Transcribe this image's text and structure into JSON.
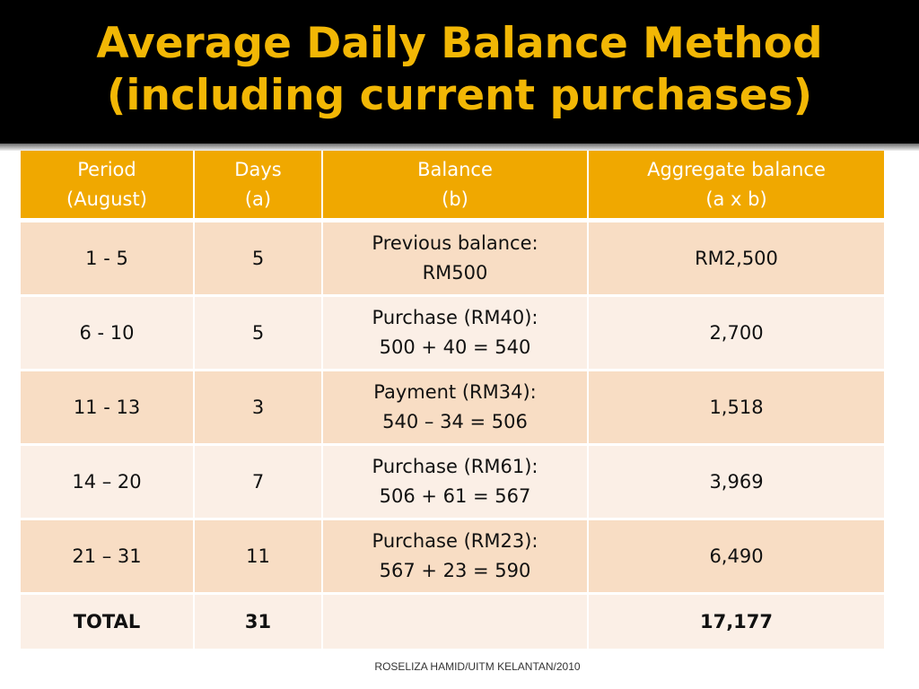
{
  "slide": {
    "title_line1": "Average Daily Balance Method",
    "title_line2": "(including current purchases)",
    "footer": "ROSELIZA HAMID/UITM KELANTAN/2010"
  },
  "table": {
    "headers": [
      {
        "line1": "Period",
        "line2": "(August)"
      },
      {
        "line1": "Days",
        "line2": "(a)"
      },
      {
        "line1": "Balance",
        "line2": "(b)"
      },
      {
        "line1": "Aggregate balance",
        "line2": "(a x b)"
      }
    ],
    "rows": [
      {
        "period": "1 - 5",
        "days": "5",
        "balance_line1": "Previous balance:",
        "balance_line2": "RM500",
        "aggregate": "RM2,500"
      },
      {
        "period": "6 - 10",
        "days": "5",
        "balance_line1": "Purchase  (RM40):",
        "balance_line2": "500 + 40 = 540",
        "aggregate": "2,700"
      },
      {
        "period": "11 - 13",
        "days": "3",
        "balance_line1": "Payment (RM34):",
        "balance_line2": "540 – 34 = 506",
        "aggregate": "1,518"
      },
      {
        "period": "14 – 20",
        "days": "7",
        "balance_line1": "Purchase (RM61):",
        "balance_line2": "506 + 61 = 567",
        "aggregate": "3,969"
      },
      {
        "period": "21 – 31",
        "days": "11",
        "balance_line1": "Purchase (RM23):",
        "balance_line2": "567 + 23 = 590",
        "aggregate": "6,490"
      }
    ],
    "total": {
      "label": "TOTAL",
      "days": "31",
      "balance": "",
      "aggregate": "17,177"
    }
  },
  "colors": {
    "title_text": "#f2b705",
    "title_band": "#000000",
    "header_bg": "#f0a800",
    "row_odd_bg": "#f8ddc4",
    "row_even_bg": "#fbefe6"
  }
}
